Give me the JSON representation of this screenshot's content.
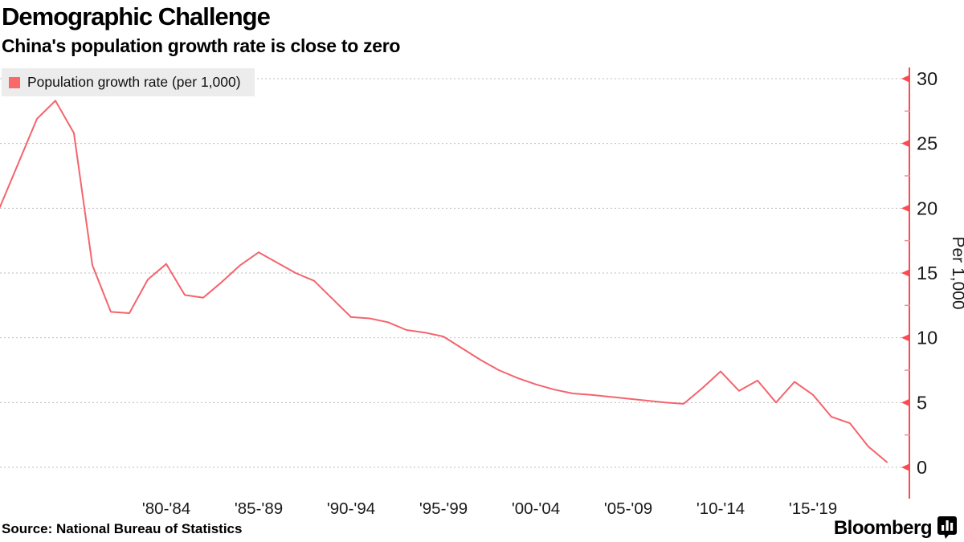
{
  "header": {
    "title": "Demographic Challenge",
    "subtitle": "China's population growth rate is close to zero"
  },
  "legend": {
    "label": "Population growth rate (per 1,000)",
    "swatch_color": "#fa6969"
  },
  "footer": {
    "source": "Source: National Bureau of Statistics",
    "brand": "Bloomberg"
  },
  "chart_data": {
    "type": "line",
    "title": "Demographic Challenge",
    "subtitle": "China's population growth rate is close to zero",
    "series_name": "Population growth rate (per 1,000)",
    "x": [
      1973,
      1974,
      1975,
      1976,
      1977,
      1978,
      1979,
      1980,
      1981,
      1982,
      1983,
      1984,
      1985,
      1986,
      1987,
      1988,
      1989,
      1990,
      1991,
      1992,
      1993,
      1994,
      1995,
      1996,
      1997,
      1998,
      1999,
      2000,
      2001,
      2002,
      2003,
      2004,
      2005,
      2006,
      2007,
      2008,
      2009,
      2010,
      2011,
      2012,
      2013,
      2014,
      2015,
      2016,
      2017,
      2018,
      2019,
      2020,
      2021
    ],
    "values": [
      20.1,
      23.5,
      26.9,
      28.3,
      25.8,
      15.6,
      12.0,
      11.9,
      14.5,
      15.7,
      13.3,
      13.1,
      14.3,
      15.6,
      16.6,
      15.8,
      15.0,
      14.4,
      13.0,
      11.6,
      11.5,
      11.2,
      10.6,
      10.4,
      10.1,
      9.2,
      8.3,
      7.5,
      6.9,
      6.4,
      6.0,
      5.7,
      5.6,
      5.45,
      5.3,
      5.15,
      5.0,
      4.9,
      6.1,
      7.4,
      5.9,
      6.7,
      5.0,
      6.6,
      5.6,
      3.9,
      3.4,
      1.6,
      0.4
    ],
    "xlabel": "",
    "ylabel": "Per 1,000",
    "x_ticks": [
      {
        "label": "'80-'84",
        "center_year": 1982
      },
      {
        "label": "'85-'89",
        "center_year": 1987
      },
      {
        "label": "'90-'94",
        "center_year": 1992
      },
      {
        "label": "'95-'99",
        "center_year": 1997
      },
      {
        "label": "'00-'04",
        "center_year": 2002
      },
      {
        "label": "'05-'09",
        "center_year": 2007
      },
      {
        "label": "'10-'14",
        "center_year": 2012
      },
      {
        "label": "'15-'19",
        "center_year": 2017
      }
    ],
    "yticks": [
      0,
      5,
      10,
      15,
      20,
      25,
      30
    ],
    "minor_yticks": [
      2.5,
      7.5,
      12.5,
      17.5,
      22.5,
      27.5
    ],
    "ylim": [
      0,
      30
    ],
    "grid": "horizontal-dotted",
    "legend_position": "top-left",
    "line_color": "#f4646c",
    "axis_color": "#fb4a52",
    "gridline_color": "#bcbcbc",
    "tick_label_color": "#1a1a1a"
  }
}
